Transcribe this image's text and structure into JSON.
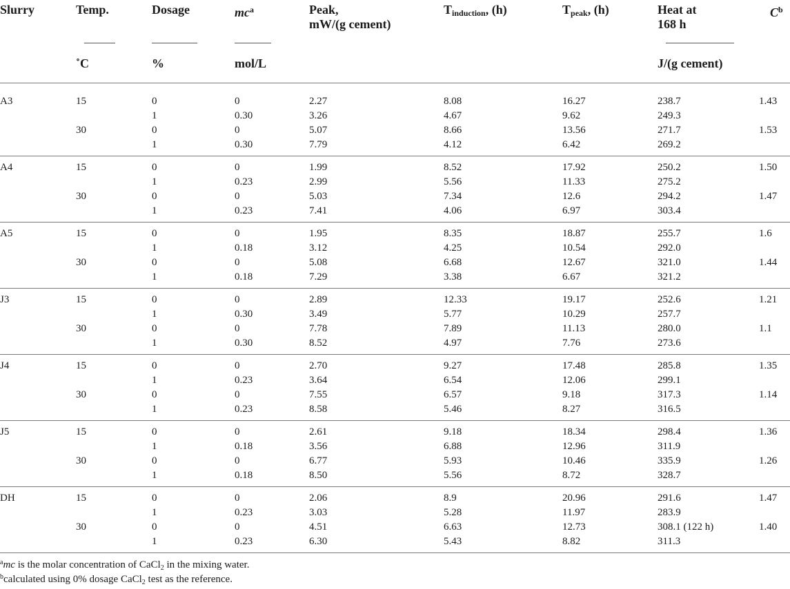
{
  "headers": {
    "slurry": "Slurry",
    "temp": "Temp.",
    "dosage": "Dosage",
    "mc_main": "mc",
    "mc_sup": "a",
    "peak_line1": "Peak,",
    "peak_line2": "mW/(g cement)",
    "tind_main": "T",
    "tind_sub": "induction",
    "tind_suffix": ", (h)",
    "tpeak_main": "T",
    "tpeak_sub": "peak",
    "tpeak_suffix": ", (h)",
    "heat_line1": "Heat at",
    "heat_line2": "168 h",
    "c_main": "C",
    "c_sup": "b"
  },
  "units": {
    "temp": "˚C",
    "dosage": "%",
    "mc": "mol/L",
    "heat": "J/(g cement)"
  },
  "groups": [
    {
      "slurry": "A3",
      "c15": "1.43",
      "c30": "1.53",
      "rows": [
        [
          "15",
          "0",
          "0",
          "2.27",
          "8.08",
          "16.27",
          "238.7"
        ],
        [
          "",
          "1",
          "0.30",
          "3.26",
          "4.67",
          "9.62",
          "249.3"
        ],
        [
          "30",
          "0",
          "0",
          "5.07",
          "8.66",
          "13.56",
          "271.7"
        ],
        [
          "",
          "1",
          "0.30",
          "7.79",
          "4.12",
          "6.42",
          "269.2"
        ]
      ]
    },
    {
      "slurry": "A4",
      "c15": "1.50",
      "c30": "1.47",
      "rows": [
        [
          "15",
          "0",
          "0",
          "1.99",
          "8.52",
          "17.92",
          "250.2"
        ],
        [
          "",
          "1",
          "0.23",
          "2.99",
          "5.56",
          "11.33",
          "275.2"
        ],
        [
          "30",
          "0",
          "0",
          "5.03",
          "7.34",
          "12.6",
          "294.2"
        ],
        [
          "",
          "1",
          "0.23",
          "7.41",
          "4.06",
          "6.97",
          "303.4"
        ]
      ]
    },
    {
      "slurry": "A5",
      "c15": "1.6",
      "c30": "1.44",
      "rows": [
        [
          "15",
          "0",
          "0",
          "1.95",
          "8.35",
          "18.87",
          "255.7"
        ],
        [
          "",
          "1",
          "0.18",
          "3.12",
          "4.25",
          "10.54",
          "292.0"
        ],
        [
          "30",
          "0",
          "0",
          "5.08",
          "6.68",
          "12.67",
          "321.0"
        ],
        [
          "",
          "1",
          "0.18",
          "7.29",
          "3.38",
          "6.67",
          "321.2"
        ]
      ]
    },
    {
      "slurry": "J3",
      "c15": "1.21",
      "c30": "1.1",
      "rows": [
        [
          "15",
          "0",
          "0",
          "2.89",
          "12.33",
          "19.17",
          "252.6"
        ],
        [
          "",
          "1",
          "0.30",
          "3.49",
          "5.77",
          "10.29",
          "257.7"
        ],
        [
          "30",
          "0",
          "0",
          "7.78",
          "7.89",
          "11.13",
          "280.0"
        ],
        [
          "",
          "1",
          "0.30",
          "8.52",
          "4.97",
          "7.76",
          "273.6"
        ]
      ]
    },
    {
      "slurry": "J4",
      "c15": "1.35",
      "c30": "1.14",
      "rows": [
        [
          "15",
          "0",
          "0",
          "2.70",
          "9.27",
          "17.48",
          "285.8"
        ],
        [
          "",
          "1",
          "0.23",
          "3.64",
          "6.54",
          "12.06",
          "299.1"
        ],
        [
          "30",
          "0",
          "0",
          "7.55",
          "6.57",
          "9.18",
          "317.3"
        ],
        [
          "",
          "1",
          "0.23",
          "8.58",
          "5.46",
          "8.27",
          "316.5"
        ]
      ]
    },
    {
      "slurry": "J5",
      "c15": "1.36",
      "c30": "1.26",
      "rows": [
        [
          "15",
          "0",
          "0",
          "2.61",
          "9.18",
          "18.34",
          "298.4"
        ],
        [
          "",
          "1",
          "0.18",
          "3.56",
          "6.88",
          "12.96",
          "311.9"
        ],
        [
          "30",
          "0",
          "0",
          "6.77",
          "5.93",
          "10.46",
          "335.9"
        ],
        [
          "",
          "1",
          "0.18",
          "8.50",
          "5.56",
          "8.72",
          "328.7"
        ]
      ]
    },
    {
      "slurry": "DH",
      "c15": "1.47",
      "c30": "1.40",
      "rows": [
        [
          "15",
          "0",
          "0",
          "2.06",
          "8.9",
          "20.96",
          "291.6"
        ],
        [
          "",
          "1",
          "0.23",
          "3.03",
          "5.28",
          "11.97",
          "283.9"
        ],
        [
          "30",
          "0",
          "0",
          "4.51",
          "6.63",
          "12.73",
          "308.1 (122 h)"
        ],
        [
          "",
          "1",
          "0.23",
          "6.30",
          "5.43",
          "8.82",
          "311.3"
        ]
      ]
    }
  ],
  "footnotes": {
    "a_mark": "a",
    "a_italic": "mc",
    "a_text": " is the molar concentration of CaCl",
    "a_sub": "2",
    "a_end": " in the mixing water.",
    "b_mark": "b",
    "b_text": "calculated using 0% dosage CaCl",
    "b_sub": "2",
    "b_end": " test as the reference."
  }
}
